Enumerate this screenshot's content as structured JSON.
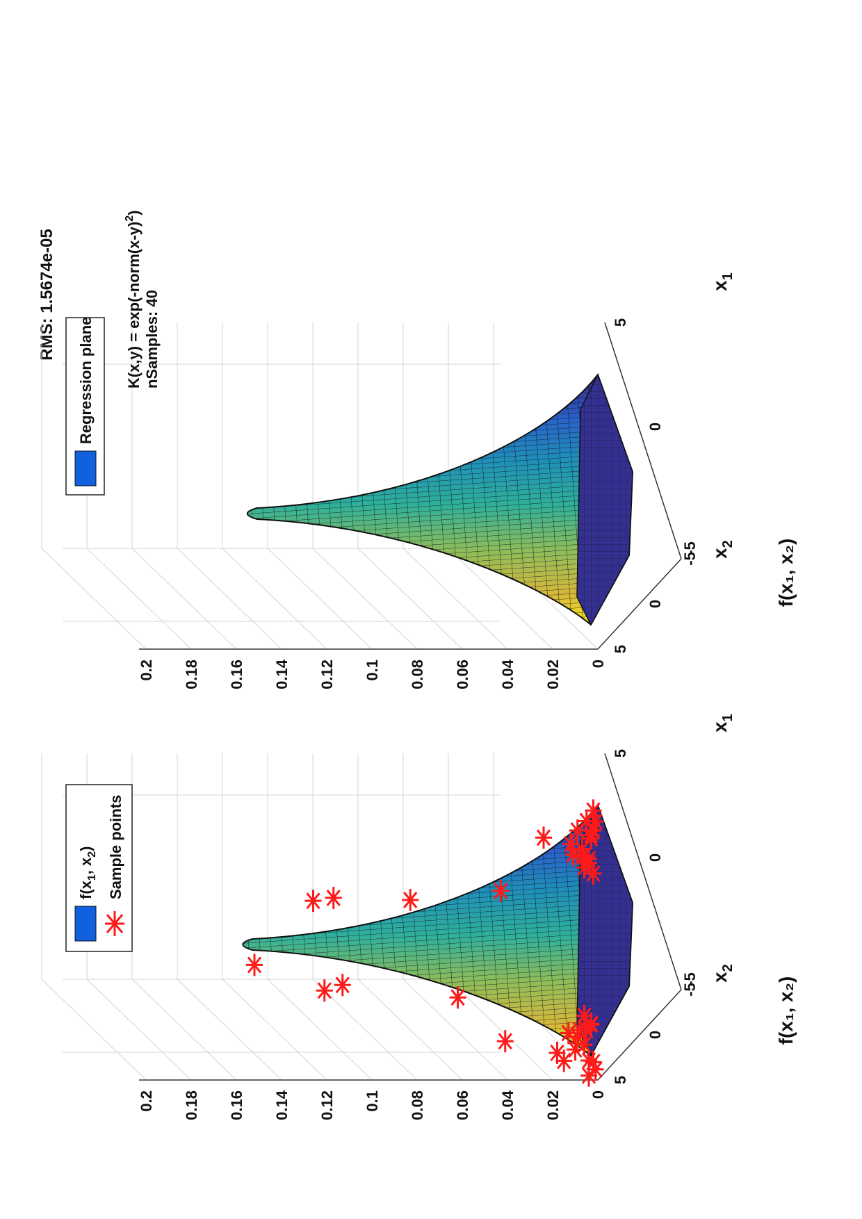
{
  "figure": {
    "orientation": "rotated-90-ccw",
    "background": "#ffffff"
  },
  "chart_data": [
    {
      "type": "surface3d",
      "title": "",
      "zlabel": "f(x₁, x₂)",
      "xlabel_sub": "1",
      "ylabel_sub": "2",
      "xlabel": "x",
      "ylabel": "x",
      "zlim": [
        0,
        0.2
      ],
      "z_ticks": [
        "0",
        "0.02",
        "0.04",
        "0.06",
        "0.08",
        "0.1",
        "0.12",
        "0.14",
        "0.16",
        "0.18",
        "0.2"
      ],
      "x1_ticks": [
        "-5",
        "0",
        "5"
      ],
      "x2_ticks": [
        "5",
        "0",
        "-5"
      ],
      "grid": true,
      "surface_peak": 0.159,
      "colormap": "parula",
      "legend": {
        "placement": "top-left",
        "entries": [
          {
            "label": "f(x",
            "sub1": "1",
            "mid": ", x",
            "sub2": "2",
            "end": ")",
            "swatch": "#1060e0"
          },
          {
            "label": "Sample points",
            "marker": "asterisk",
            "color": "#ff1a1a"
          }
        ]
      },
      "sample_points_count": 40,
      "sample_points_z": [
        0.152,
        0.126,
        0.121,
        0.117,
        0.113,
        0.083,
        0.062,
        0.043,
        0.041,
        0.024,
        0.018,
        0.012,
        0.009,
        0.007,
        0.006,
        0.005,
        0.004,
        0.003,
        0.013,
        0.011,
        0.008,
        0.006,
        0.004,
        0.002,
        0.01,
        0.007,
        0.005,
        0.004,
        0.003,
        0.002,
        0.015,
        0.009,
        0.006,
        0.004,
        0.003,
        0.002,
        0.001,
        0.001,
        0.002,
        0.003
      ]
    },
    {
      "type": "surface3d",
      "title": "RMS: 1.5674e-05",
      "zlabel": "f(x₁, x₂)",
      "xlabel_sub": "1",
      "ylabel_sub": "2",
      "xlabel": "x",
      "ylabel": "x",
      "zlim": [
        0,
        0.2
      ],
      "z_ticks": [
        "0",
        "0.02",
        "0.04",
        "0.06",
        "0.08",
        "0.1",
        "0.12",
        "0.14",
        "0.16",
        "0.18",
        "0.2"
      ],
      "x1_ticks": [
        "-5",
        "0",
        "5"
      ],
      "x2_ticks": [
        "5",
        "0",
        "-5"
      ],
      "grid": true,
      "surface_peak": 0.157,
      "colormap": "parula",
      "legend": {
        "placement": "top-left",
        "entries": [
          {
            "label": "Regression plane",
            "swatch": "#1060e0"
          }
        ]
      },
      "annotation": {
        "kernel_line": "K(x,y) = exp(-norm(x-y)",
        "kernel_sup": "2",
        "kernel_end": ")",
        "samples_line": "nSamples: 40"
      }
    }
  ]
}
